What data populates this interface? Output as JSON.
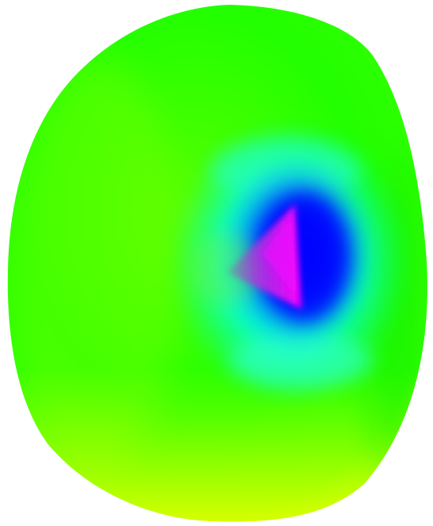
{
  "scene": {
    "background": "#ffffff",
    "blob_palette": {
      "green": "#00ff00",
      "lime": "#66ff00",
      "yellow_green": "#ccff00",
      "cyan": "#00ffff",
      "blue": "#0000ff",
      "magenta": "#ff00ff"
    }
  }
}
